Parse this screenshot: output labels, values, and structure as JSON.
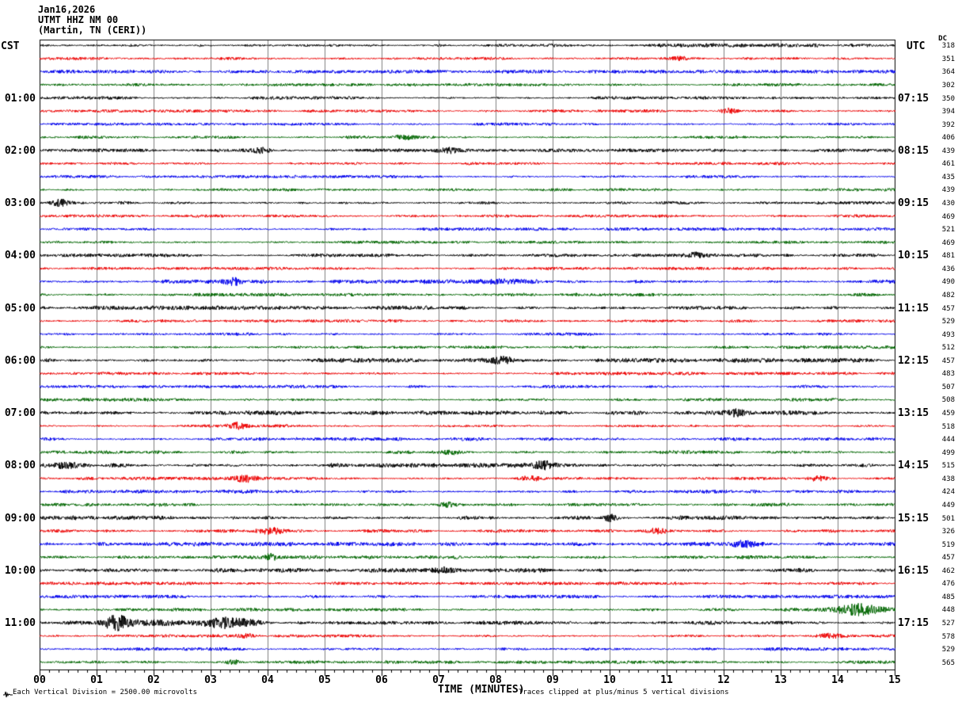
{
  "title": {
    "line1": "Jan16,2026",
    "line2": "UTMT HHZ NM 00",
    "line3": "(Martin, TN (CERI))"
  },
  "left_timezone": "CST",
  "right_timezone": "UTC",
  "dc_header": "DC",
  "footer": {
    "left": "Each Vertical Division = 2500.00 microvolts",
    "center": "TIME (MINUTES)",
    "right": "Traces clipped at plus/minus 5 vertical divisions"
  },
  "colors": {
    "trace_cycle": [
      "#000000",
      "#ee0000",
      "#0000ee",
      "#006600"
    ],
    "grid": "#808080",
    "frame": "#000000",
    "background": "#ffffff"
  },
  "x_axis": {
    "labels": [
      "00",
      "01",
      "02",
      "03",
      "04",
      "05",
      "06",
      "07",
      "08",
      "09",
      "10",
      "11",
      "12",
      "13",
      "14",
      "15"
    ],
    "minor_ticks_per_division": 6
  },
  "chart_data": {
    "type": "line",
    "title": "UTMT HHZ NM 00 (Martin, TN (CERI)) helicorder Jan16,2026",
    "xlabel": "TIME (MINUTES)",
    "x_range_minutes": [
      0,
      15
    ],
    "minutes_per_row": 15,
    "left_labels_timezone": "CST",
    "right_labels_timezone": "UTC",
    "rows": [
      {
        "dc": 318,
        "amp": 1.4,
        "events": [
          {
            "m": 12.0,
            "w": 1.5,
            "a": 0.7
          }
        ]
      },
      {
        "dc": 351,
        "amp": 1.2,
        "events": [
          {
            "m": 11.2,
            "w": 0.25,
            "a": 2.5
          }
        ]
      },
      {
        "dc": 364,
        "amp": 1.4
      },
      {
        "dc": 302,
        "amp": 1.2
      },
      {
        "cst": "01:00",
        "utc": "07:15",
        "dc": 350,
        "amp": 1.3
      },
      {
        "dc": 394,
        "amp": 1.2,
        "events": [
          {
            "m": 12.1,
            "w": 0.2,
            "a": 3.0
          }
        ]
      },
      {
        "dc": 392,
        "amp": 1.2
      },
      {
        "dc": 406,
        "amp": 1.2,
        "events": [
          {
            "m": 6.4,
            "w": 0.2,
            "a": 2.5
          }
        ]
      },
      {
        "cst": "02:00",
        "utc": "08:15",
        "dc": 439,
        "amp": 1.4,
        "events": [
          {
            "m": 3.9,
            "w": 0.25,
            "a": 3.0
          },
          {
            "m": 7.2,
            "w": 0.3,
            "a": 2.5
          }
        ]
      },
      {
        "dc": 461,
        "amp": 1.2
      },
      {
        "dc": 435,
        "amp": 1.2
      },
      {
        "dc": 439,
        "amp": 1.2
      },
      {
        "cst": "03:00",
        "utc": "09:15",
        "dc": 430,
        "amp": 1.3,
        "events": [
          {
            "m": 0.35,
            "w": 0.25,
            "a": 3.5
          }
        ]
      },
      {
        "dc": 469,
        "amp": 1.2
      },
      {
        "dc": 521,
        "amp": 1.3
      },
      {
        "dc": 469,
        "amp": 1.2
      },
      {
        "cst": "04:00",
        "utc": "10:15",
        "dc": 481,
        "amp": 1.4,
        "events": [
          {
            "m": 11.5,
            "w": 0.2,
            "a": 2.5
          }
        ]
      },
      {
        "dc": 436,
        "amp": 1.2
      },
      {
        "dc": 490,
        "amp": 1.6,
        "events": [
          {
            "m": 3.4,
            "w": 0.2,
            "a": 3.5
          },
          {
            "m": 7.9,
            "w": 1.2,
            "a": 2.2
          }
        ]
      },
      {
        "dc": 482,
        "amp": 1.4
      },
      {
        "cst": "05:00",
        "utc": "11:15",
        "dc": 457,
        "amp": 1.7
      },
      {
        "dc": 529,
        "amp": 1.2
      },
      {
        "dc": 493,
        "amp": 1.3
      },
      {
        "dc": 512,
        "amp": 1.3
      },
      {
        "cst": "06:00",
        "utc": "12:15",
        "dc": 457,
        "amp": 1.8,
        "events": [
          {
            "m": 8.1,
            "w": 0.3,
            "a": 3.5
          }
        ]
      },
      {
        "dc": 483,
        "amp": 1.3
      },
      {
        "dc": 507,
        "amp": 1.3
      },
      {
        "dc": 508,
        "amp": 1.4
      },
      {
        "cst": "07:00",
        "utc": "13:15",
        "dc": 459,
        "amp": 1.8,
        "events": [
          {
            "m": 12.2,
            "w": 0.25,
            "a": 3.0
          }
        ]
      },
      {
        "dc": 518,
        "amp": 1.2,
        "events": [
          {
            "m": 3.45,
            "w": 0.25,
            "a": 3.5
          }
        ]
      },
      {
        "dc": 444,
        "amp": 1.4
      },
      {
        "dc": 499,
        "amp": 1.4,
        "events": [
          {
            "m": 7.2,
            "w": 0.3,
            "a": 3.0
          }
        ]
      },
      {
        "cst": "08:00",
        "utc": "14:15",
        "dc": 515,
        "amp": 1.9,
        "events": [
          {
            "m": 0.45,
            "w": 0.4,
            "a": 3.5
          },
          {
            "m": 8.85,
            "w": 0.25,
            "a": 4.5
          }
        ]
      },
      {
        "dc": 438,
        "amp": 1.3,
        "events": [
          {
            "m": 3.6,
            "w": 0.3,
            "a": 3.5
          },
          {
            "m": 8.6,
            "w": 0.3,
            "a": 3.5
          },
          {
            "m": 13.65,
            "w": 0.25,
            "a": 3.0
          }
        ]
      },
      {
        "dc": 424,
        "amp": 1.4
      },
      {
        "dc": 449,
        "amp": 1.5,
        "events": [
          {
            "m": 7.15,
            "w": 0.3,
            "a": 3.0
          }
        ]
      },
      {
        "cst": "09:00",
        "utc": "15:15",
        "dc": 501,
        "amp": 1.8,
        "events": [
          {
            "m": 10.0,
            "w": 0.18,
            "a": 4.5
          }
        ]
      },
      {
        "dc": 326,
        "amp": 1.4,
        "events": [
          {
            "m": 4.05,
            "w": 0.3,
            "a": 3.5
          },
          {
            "m": 10.85,
            "w": 0.35,
            "a": 3.5
          }
        ]
      },
      {
        "dc": 519,
        "amp": 1.7,
        "events": [
          {
            "m": 12.35,
            "w": 0.35,
            "a": 3.5
          }
        ]
      },
      {
        "dc": 457,
        "amp": 1.5,
        "events": [
          {
            "m": 4.05,
            "w": 0.18,
            "a": 3.5
          }
        ]
      },
      {
        "cst": "10:00",
        "utc": "16:15",
        "dc": 462,
        "amp": 1.8,
        "events": [
          {
            "m": 7.1,
            "w": 0.25,
            "a": 3.0
          }
        ]
      },
      {
        "dc": 476,
        "amp": 1.3
      },
      {
        "dc": 485,
        "amp": 1.4
      },
      {
        "dc": 448,
        "amp": 1.4,
        "events": [
          {
            "m": 14.35,
            "w": 0.55,
            "a": 6.5
          }
        ]
      },
      {
        "cst": "11:00",
        "utc": "17:15",
        "dc": 527,
        "amp": 1.6,
        "events": [
          {
            "m": 1.35,
            "w": 0.35,
            "a": 8.0
          },
          {
            "m": 2.3,
            "w": 0.8,
            "a": 2.5
          },
          {
            "m": 3.3,
            "w": 0.6,
            "a": 6.5
          }
        ]
      },
      {
        "dc": 578,
        "amp": 1.3,
        "events": [
          {
            "m": 3.6,
            "w": 0.25,
            "a": 3.0
          },
          {
            "m": 13.9,
            "w": 0.25,
            "a": 2.5
          }
        ]
      },
      {
        "dc": 529,
        "amp": 1.4
      },
      {
        "dc": 565,
        "amp": 1.3,
        "events": [
          {
            "m": 3.4,
            "w": 0.2,
            "a": 2.8
          }
        ]
      }
    ]
  }
}
